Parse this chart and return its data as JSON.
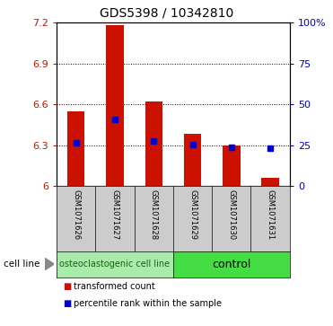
{
  "title": "GDS5398 / 10342810",
  "samples": [
    "GSM1071626",
    "GSM1071627",
    "GSM1071628",
    "GSM1071629",
    "GSM1071630",
    "GSM1071631"
  ],
  "red_top": [
    6.55,
    7.18,
    6.62,
    6.38,
    6.3,
    6.06
  ],
  "red_bottom": [
    6.0,
    6.0,
    6.0,
    6.0,
    6.0,
    6.0
  ],
  "blue_y": [
    6.32,
    6.49,
    6.33,
    6.305,
    6.285,
    6.28
  ],
  "ylim": [
    6.0,
    7.2
  ],
  "yticks": [
    6.0,
    6.3,
    6.6,
    6.9,
    7.2
  ],
  "ytick_labels": [
    "6",
    "6.3",
    "6.6",
    "6.9",
    "7.2"
  ],
  "right_yticks": [
    0,
    25,
    50,
    75,
    100
  ],
  "right_ytick_labels": [
    "0",
    "25",
    "50",
    "75",
    "100%"
  ],
  "group1_count": 3,
  "group1_label": "osteoclastogenic cell line",
  "group2_label": "control",
  "cell_line_label": "cell line",
  "legend1": "transformed count",
  "legend2": "percentile rank within the sample",
  "bar_color": "#cc1100",
  "blue_color": "#0000cc",
  "group1_facecolor": "#aaeaaa",
  "group2_facecolor": "#44dd44",
  "label_area_color": "#cccccc",
  "bar_width": 0.45,
  "title_fontsize": 10,
  "tick_fontsize": 8,
  "sample_fontsize": 6,
  "legend_fontsize": 7,
  "group_label_fontsize": 7
}
